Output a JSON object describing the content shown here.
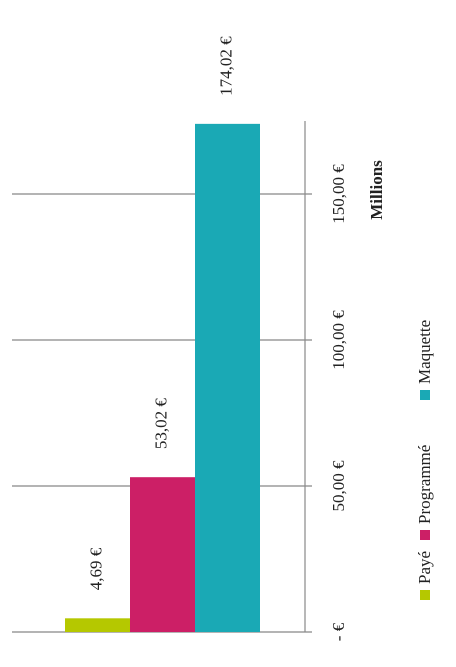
{
  "chart_data": {
    "type": "bar",
    "orientation": "rotated",
    "y_label": "Millions",
    "categories": [
      null
    ],
    "series": [
      {
        "name": "Payé",
        "color": "#b5c800",
        "values": [
          4.69
        ],
        "value_labels": [
          "4,69 €"
        ]
      },
      {
        "name": "Programmé",
        "color": "#cc1f66",
        "values": [
          53.02
        ],
        "value_labels": [
          "53,02 €"
        ]
      },
      {
        "name": "Maquette",
        "color": "#1aa9b5",
        "values": [
          174.02
        ],
        "value_labels": [
          "174,02 €"
        ]
      }
    ],
    "ylim": [
      0,
      175
    ],
    "yticks": [
      {
        "value": 0,
        "label": "- €"
      },
      {
        "value": 50,
        "label": "50,00 €"
      },
      {
        "value": 100,
        "label": "100,00 €"
      },
      {
        "value": 150,
        "label": "150,00 €"
      }
    ],
    "grid": true
  }
}
